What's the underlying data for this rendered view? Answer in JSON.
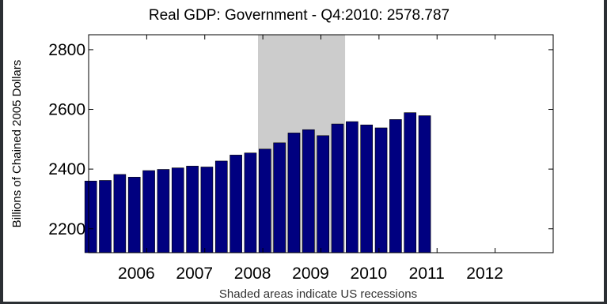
{
  "chart_data": {
    "type": "bar",
    "title": "Real GDP: Government - Q4:2010: 2578.787",
    "ylabel": "Billions of Chained 2005 Dollars",
    "xlabel": "",
    "note": "Shaded areas indicate US recessions",
    "xlim": [
      2005.0,
      2013.0
    ],
    "ylim": [
      2120,
      2850
    ],
    "x_ticks": [
      {
        "value": 2006,
        "label": "2006"
      },
      {
        "value": 2007,
        "label": "2007"
      },
      {
        "value": 2008,
        "label": "2008"
      },
      {
        "value": 2009,
        "label": "2009"
      },
      {
        "value": 2010,
        "label": "2010"
      },
      {
        "value": 2011,
        "label": "2011"
      },
      {
        "value": 2012,
        "label": "2012"
      }
    ],
    "y_ticks": [
      {
        "value": 2200,
        "label": "2200"
      },
      {
        "value": 2400,
        "label": "2400"
      },
      {
        "value": 2600,
        "label": "2600"
      },
      {
        "value": 2800,
        "label": "2800"
      }
    ],
    "recession": {
      "start": "2007-12",
      "end": "2009-06"
    },
    "bar_color": "#000080",
    "recession_color": "#cccccc",
    "series": [
      {
        "categories": [
          "2005-Q1",
          "2005-Q2",
          "2005-Q3",
          "2005-Q4",
          "2006-Q1",
          "2006-Q2",
          "2006-Q3",
          "2006-Q4",
          "2007-Q1",
          "2007-Q2",
          "2007-Q3",
          "2007-Q4",
          "2008-Q1",
          "2008-Q2",
          "2008-Q3",
          "2008-Q4",
          "2009-Q1",
          "2009-Q2",
          "2009-Q3",
          "2009-Q4",
          "2010-Q1",
          "2010-Q2",
          "2010-Q3",
          "2010-Q4"
        ],
        "values": [
          2360,
          2362,
          2382,
          2373,
          2395,
          2399,
          2404,
          2410,
          2407,
          2427,
          2447,
          2454,
          2467,
          2488,
          2521,
          2532,
          2512,
          2551,
          2559,
          2548,
          2538,
          2566,
          2589,
          2578.787
        ]
      }
    ]
  }
}
